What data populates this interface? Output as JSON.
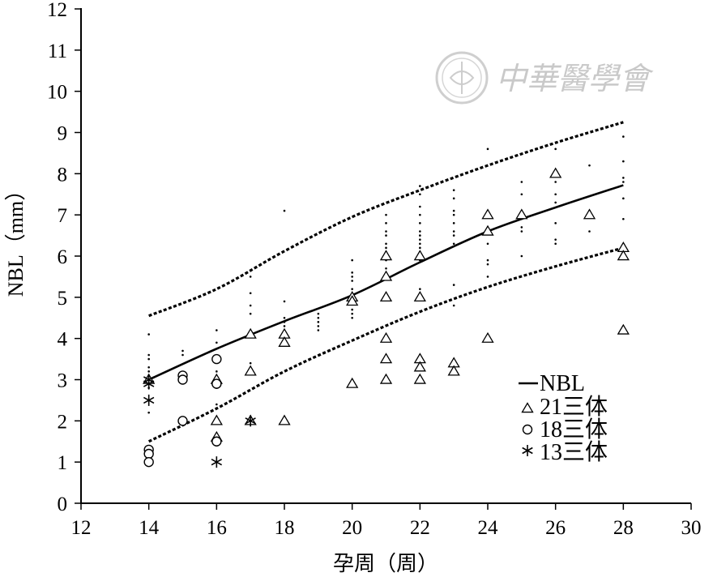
{
  "chart_data": {
    "type": "scatter",
    "title": "",
    "xlabel": "孕周（周）",
    "ylabel": "NBL（mm）",
    "xlim": [
      12,
      30
    ],
    "ylim": [
      0,
      12
    ],
    "x_ticks": [
      12,
      14,
      16,
      18,
      20,
      22,
      24,
      26,
      28,
      30
    ],
    "y_ticks": [
      0,
      1,
      2,
      3,
      4,
      5,
      6,
      7,
      8,
      9,
      10,
      11,
      12
    ],
    "grid": false,
    "legend_position": "lower-right",
    "watermark": "中華醫學會",
    "curves": [
      {
        "name": "NBL",
        "style": "solid",
        "points": [
          [
            14,
            3.0
          ],
          [
            16,
            3.75
          ],
          [
            18,
            4.42
          ],
          [
            20,
            5.05
          ],
          [
            22,
            5.85
          ],
          [
            24,
            6.6
          ],
          [
            26,
            7.18
          ],
          [
            28,
            7.72
          ]
        ]
      },
      {
        "name": "",
        "style": "dashed",
        "points": [
          [
            14,
            4.55
          ],
          [
            16,
            5.2
          ],
          [
            18,
            6.12
          ],
          [
            20,
            6.95
          ],
          [
            22,
            7.6
          ],
          [
            24,
            8.2
          ],
          [
            26,
            8.75
          ],
          [
            28,
            9.25
          ]
        ]
      },
      {
        "name": "",
        "style": "dashed",
        "points": [
          [
            14,
            1.5
          ],
          [
            16,
            2.3
          ],
          [
            18,
            3.2
          ],
          [
            20,
            3.95
          ],
          [
            22,
            4.65
          ],
          [
            24,
            5.25
          ],
          [
            26,
            5.75
          ],
          [
            28,
            6.2
          ]
        ]
      }
    ],
    "normal_points": [
      [
        14,
        4.1
      ],
      [
        14,
        3.6
      ],
      [
        14,
        3.5
      ],
      [
        14,
        3.3
      ],
      [
        14,
        3.2
      ],
      [
        14,
        3.1
      ],
      [
        14,
        2.8
      ],
      [
        14,
        2.2
      ],
      [
        15,
        3.7
      ],
      [
        15,
        3.6
      ],
      [
        15,
        3.1
      ],
      [
        16,
        4.2
      ],
      [
        16,
        3.9
      ],
      [
        16,
        3.2
      ],
      [
        16,
        2.8
      ],
      [
        16,
        2.4
      ],
      [
        17,
        5.5
      ],
      [
        17,
        5.1
      ],
      [
        17,
        4.8
      ],
      [
        17,
        4.6
      ],
      [
        17,
        3.4
      ],
      [
        18,
        7.1
      ],
      [
        18,
        4.9
      ],
      [
        18,
        4.5
      ],
      [
        18,
        4.4
      ],
      [
        18,
        4.3
      ],
      [
        18,
        4.2
      ],
      [
        19,
        4.6
      ],
      [
        19,
        4.5
      ],
      [
        19,
        4.4
      ],
      [
        19,
        4.3
      ],
      [
        19,
        4.2
      ],
      [
        20,
        5.9
      ],
      [
        20,
        5.6
      ],
      [
        20,
        5.5
      ],
      [
        20,
        5.4
      ],
      [
        20,
        5.2
      ],
      [
        20,
        4.7
      ],
      [
        20,
        4.6
      ],
      [
        20,
        4.5
      ],
      [
        21,
        7.0
      ],
      [
        21,
        6.8
      ],
      [
        21,
        6.6
      ],
      [
        21,
        6.5
      ],
      [
        21,
        6.3
      ],
      [
        21,
        6.2
      ],
      [
        21,
        6.1
      ],
      [
        21,
        5.9
      ],
      [
        21,
        5.7
      ],
      [
        22,
        7.7
      ],
      [
        22,
        7.5
      ],
      [
        22,
        7.2
      ],
      [
        22,
        7.0
      ],
      [
        22,
        6.8
      ],
      [
        22,
        6.6
      ],
      [
        22,
        6.5
      ],
      [
        22,
        6.4
      ],
      [
        22,
        6.3
      ],
      [
        22,
        6.2
      ],
      [
        22,
        6.1
      ],
      [
        22,
        5.9
      ],
      [
        22,
        5.2
      ],
      [
        23,
        7.6
      ],
      [
        23,
        7.4
      ],
      [
        23,
        7.1
      ],
      [
        23,
        7.0
      ],
      [
        23,
        6.8
      ],
      [
        23,
        6.6
      ],
      [
        23,
        6.5
      ],
      [
        23,
        6.3
      ],
      [
        23,
        5.3
      ],
      [
        23,
        4.8
      ],
      [
        24,
        8.6
      ],
      [
        24,
        6.3
      ],
      [
        24,
        5.9
      ],
      [
        24,
        5.8
      ],
      [
        24,
        5.5
      ],
      [
        25,
        7.8
      ],
      [
        25,
        7.5
      ],
      [
        25,
        6.7
      ],
      [
        25,
        6.6
      ],
      [
        25,
        6.0
      ],
      [
        26,
        8.6
      ],
      [
        26,
        7.8
      ],
      [
        26,
        7.5
      ],
      [
        26,
        7.3
      ],
      [
        26,
        6.8
      ],
      [
        26,
        6.4
      ],
      [
        26,
        6.3
      ],
      [
        27,
        8.2
      ],
      [
        27,
        7.1
      ],
      [
        27,
        6.6
      ],
      [
        28,
        8.9
      ],
      [
        28,
        8.3
      ],
      [
        28,
        7.9
      ],
      [
        28,
        7.8
      ],
      [
        28,
        7.4
      ],
      [
        28,
        6.9
      ],
      [
        28,
        6.2
      ]
    ],
    "series": [
      {
        "name": "21三体",
        "marker": "triangle",
        "points": [
          [
            14,
            3.0
          ],
          [
            16,
            3.0
          ],
          [
            16,
            2.0
          ],
          [
            16,
            1.6
          ],
          [
            17,
            4.1
          ],
          [
            17,
            3.2
          ],
          [
            17,
            2.0
          ],
          [
            18,
            4.1
          ],
          [
            18,
            3.9
          ],
          [
            18,
            2.0
          ],
          [
            20,
            5.0
          ],
          [
            20,
            4.9
          ],
          [
            20,
            2.9
          ],
          [
            21,
            6.0
          ],
          [
            21,
            5.5
          ],
          [
            21,
            5.0
          ],
          [
            21,
            4.0
          ],
          [
            21,
            3.5
          ],
          [
            21,
            3.0
          ],
          [
            22,
            6.0
          ],
          [
            22,
            5.0
          ],
          [
            22,
            3.5
          ],
          [
            22,
            3.3
          ],
          [
            22,
            3.0
          ],
          [
            23,
            3.4
          ],
          [
            23,
            3.2
          ],
          [
            24,
            7.0
          ],
          [
            24,
            6.6
          ],
          [
            24,
            4.0
          ],
          [
            25,
            7.0
          ],
          [
            26,
            8.0
          ],
          [
            27,
            7.0
          ],
          [
            28,
            6.2
          ],
          [
            28,
            6.0
          ],
          [
            28,
            4.2
          ]
        ]
      },
      {
        "name": "18三体",
        "marker": "circle",
        "points": [
          [
            14,
            1.3
          ],
          [
            14,
            1.2
          ],
          [
            14,
            1.0
          ],
          [
            15,
            3.1
          ],
          [
            15,
            3.0
          ],
          [
            15,
            2.0
          ],
          [
            16,
            3.5
          ],
          [
            16,
            2.9
          ],
          [
            16,
            1.5
          ]
        ]
      },
      {
        "name": "13三体",
        "marker": "asterisk",
        "points": [
          [
            14,
            3.0
          ],
          [
            14,
            2.9
          ],
          [
            14,
            2.5
          ],
          [
            16,
            1.0
          ],
          [
            17,
            2.0
          ]
        ]
      }
    ],
    "legend": [
      "NBL",
      "21三体",
      "18三体",
      "13三体"
    ]
  }
}
